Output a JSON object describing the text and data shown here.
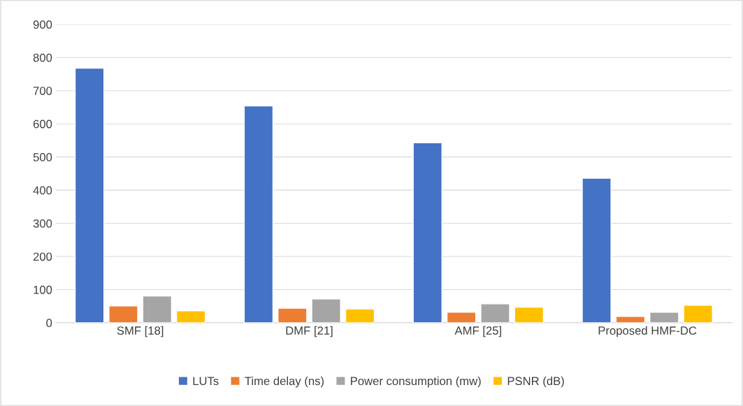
{
  "chart_data": {
    "type": "bar",
    "categories": [
      "SMF [18]",
      "DMF [21]",
      "AMF [25]",
      "Proposed HMF-DC"
    ],
    "series": [
      {
        "name": "LUTs",
        "color": "#4472c4",
        "values": [
          768,
          654,
          543,
          436
        ]
      },
      {
        "name": "Time delay (ns)",
        "color": "#ed7d31",
        "values": [
          51,
          44,
          32,
          19
        ]
      },
      {
        "name": "Power consumption (mw)",
        "color": "#a5a5a5",
        "values": [
          81,
          72,
          57,
          32
        ]
      },
      {
        "name": "PSNR (dB)",
        "color": "#ffc000",
        "values": [
          36,
          42,
          47,
          53
        ]
      }
    ],
    "ylim": [
      0,
      900
    ],
    "yticks": [
      0,
      100,
      200,
      300,
      400,
      500,
      600,
      700,
      800,
      900
    ],
    "grid": "y",
    "legend": "bottom"
  }
}
